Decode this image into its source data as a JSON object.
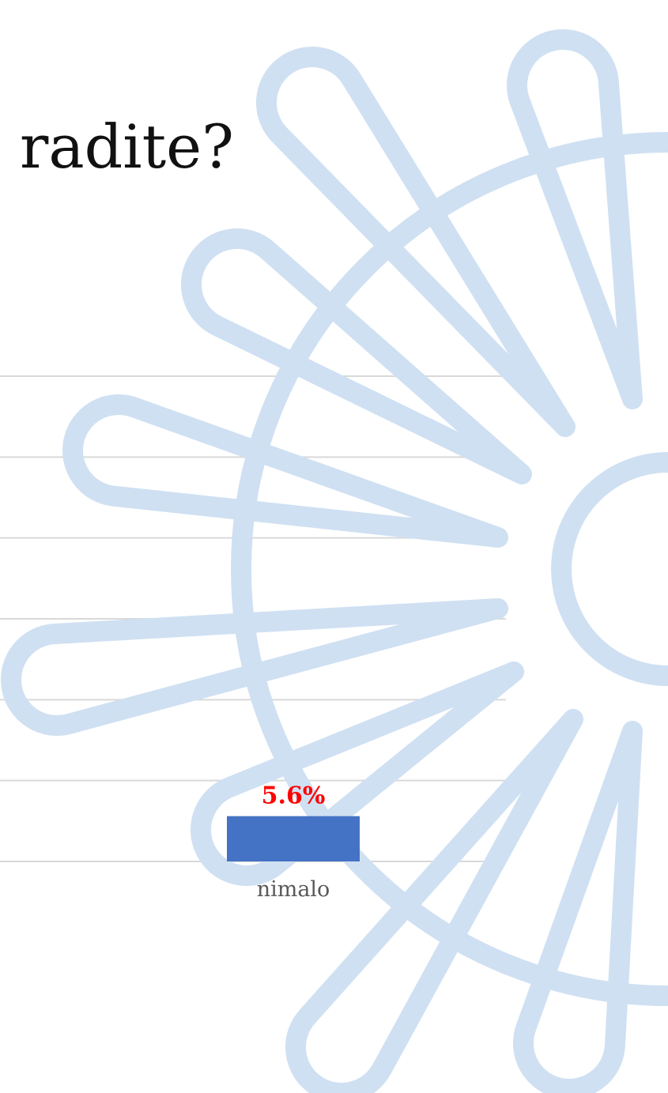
{
  "chart_data": {
    "type": "bar",
    "title": "radite?",
    "categories": [
      "nimalo"
    ],
    "values": [
      5.6
    ],
    "value_labels": [
      "5.6%"
    ],
    "color": "#4472c4",
    "value_label_color": "#ff0000",
    "ylim": [
      0,
      60
    ],
    "yticks": [
      0,
      10,
      20,
      30,
      40,
      50,
      60
    ],
    "grid": true
  }
}
